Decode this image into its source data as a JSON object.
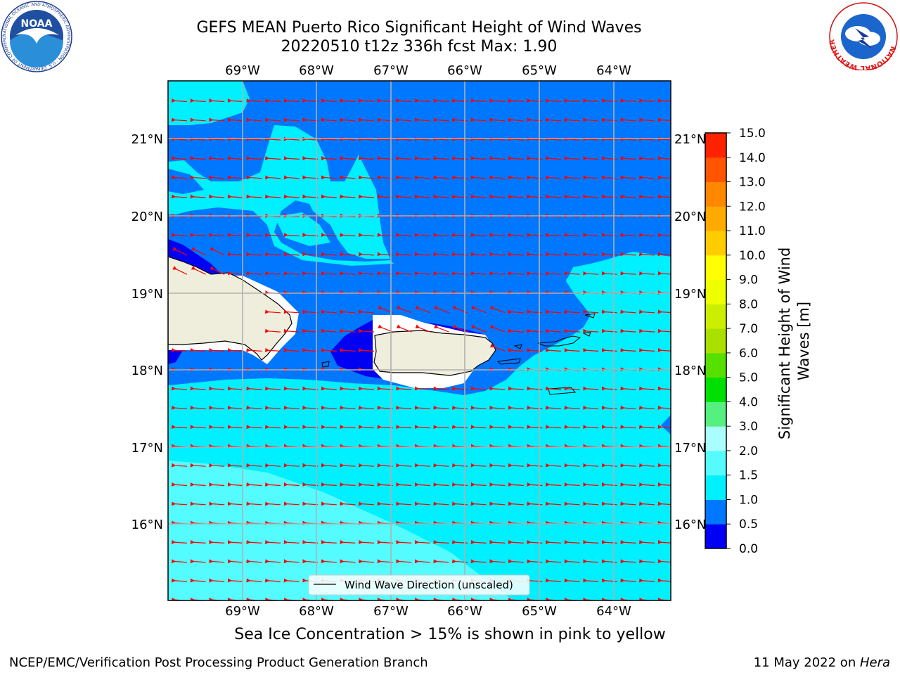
{
  "header": {
    "title_line1": "GEFS MEAN Puerto Rico Significant Height of Wind Waves",
    "title_line2": "20220510 t12z 336h fcst   Max: 1.90"
  },
  "logos": {
    "left": {
      "name": "noaa-logo",
      "text": "NOAA",
      "ring_text": "NATIONAL OCEANIC AND ATMOSPHERIC ADMINISTRATION · U.S. DEPARTMENT OF COMMERCE"
    },
    "right": {
      "name": "nws-logo",
      "ring_text": "NATIONAL WEATHER SERVICE"
    }
  },
  "map": {
    "lon_labels": [
      "69°W",
      "68°W",
      "67°W",
      "66°W",
      "65°W",
      "64°W"
    ],
    "lat_labels": [
      "21°N",
      "20°N",
      "19°N",
      "18°N",
      "17°N",
      "16°N"
    ],
    "legend_label": "Wind Wave Direction (unscaled)",
    "arrow_color": "#ff0000",
    "land_color": "#efeedd",
    "ocean_colors": {
      "deep_blue": "#0000f2",
      "blue": "#0077ff",
      "cyan": "#00f0ff",
      "light_cyan": "#55fcff",
      "pale_cyan": "#aafeff"
    }
  },
  "colorbar": {
    "label": "Significant Height of Wind Waves [m]",
    "ticks": [
      "0.0",
      "0.5",
      "1.0",
      "1.5",
      "2.0",
      "3.0",
      "4.0",
      "5.0",
      "6.0",
      "7.0",
      "8.0",
      "9.0",
      "10.0",
      "11.0",
      "12.0",
      "13.0",
      "14.0",
      "15.0"
    ],
    "colors": [
      "#0000f5",
      "#0077ff",
      "#00f0ff",
      "#55fcff",
      "#aafeff",
      "#55f080",
      "#00e000",
      "#55e000",
      "#aae000",
      "#ccee00",
      "#eeff00",
      "#ffff00",
      "#ffcc00",
      "#ffaa00",
      "#ff8800",
      "#ff5500",
      "#ff2200"
    ]
  },
  "caption": "Sea Ice Concentration > 15% is shown in pink to yellow",
  "footer": {
    "left": "NCEP/EMC/Verification Post Processing Product Generation Branch",
    "right_date": "11 May 2022 on ",
    "right_host": "Hera"
  }
}
